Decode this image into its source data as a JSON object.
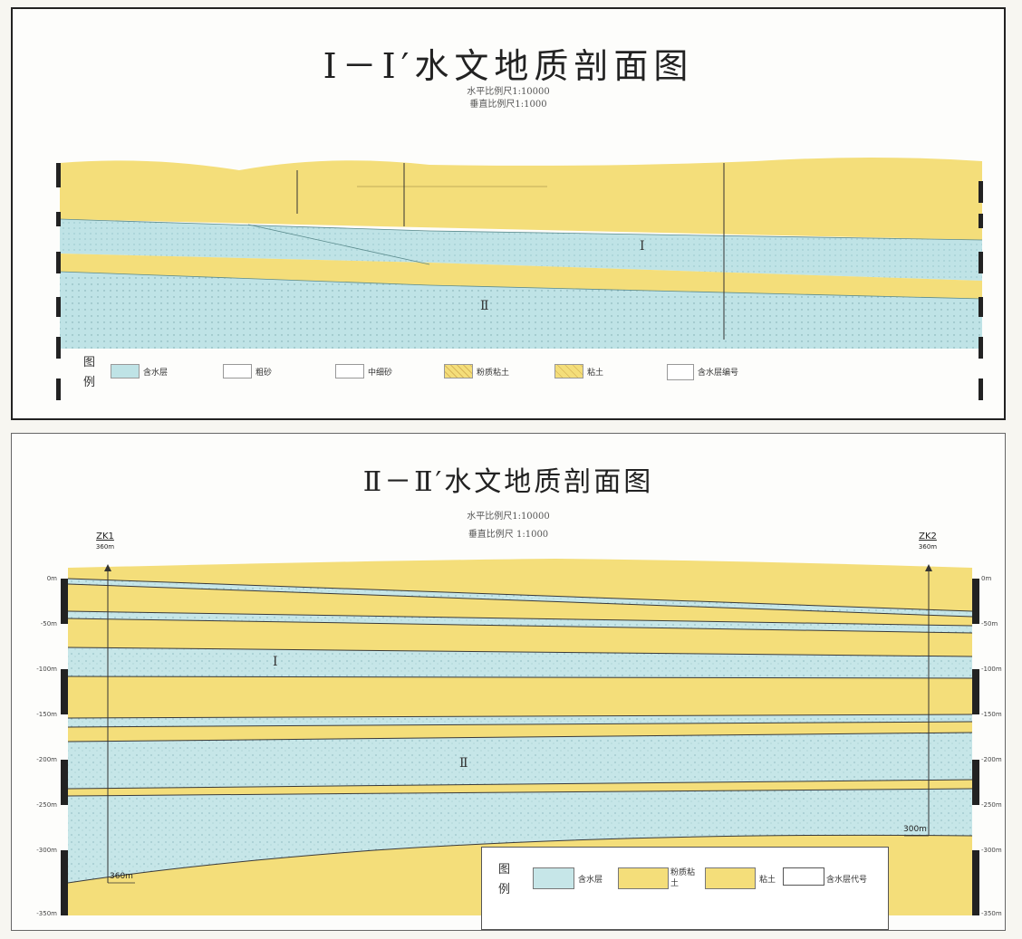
{
  "section1": {
    "title": "Ⅰ－Ⅰ′水文地质剖面图",
    "scale_h": "水平比例尺1:10000",
    "scale_v": "垂直比例尺1:1000",
    "roman_i": "Ⅰ",
    "roman_ii": "Ⅱ",
    "legend_title": "图 例",
    "legend": [
      "含水层",
      "粗砂",
      "中细砂",
      "粉质粘土",
      "粘土",
      "含水层编号"
    ]
  },
  "section2": {
    "title": "Ⅱ－Ⅱ′水文地质剖面图",
    "scale_h": "水平比例尺1:10000",
    "scale_v": "垂直比例尺 1:1000",
    "well_left": "ZK1",
    "well_left_sub": "360m",
    "well_right": "ZK2",
    "well_right_sub": "360m",
    "well_left_depth": "360m",
    "well_right_depth": "300m",
    "depth_labels": [
      "0m",
      "-50m",
      "-100m",
      "-150m",
      "-200m",
      "-250m",
      "-300m",
      "-350m"
    ],
    "roman_i": "Ⅰ",
    "roman_ii": "Ⅱ",
    "legend_title": "图 例",
    "legend": [
      "含水层",
      "粉质粘土",
      "粘土",
      "含水层代号"
    ]
  },
  "colors": {
    "clay": "#f4de7a",
    "aquifer": "#bfe3e6",
    "border": "#222222"
  }
}
